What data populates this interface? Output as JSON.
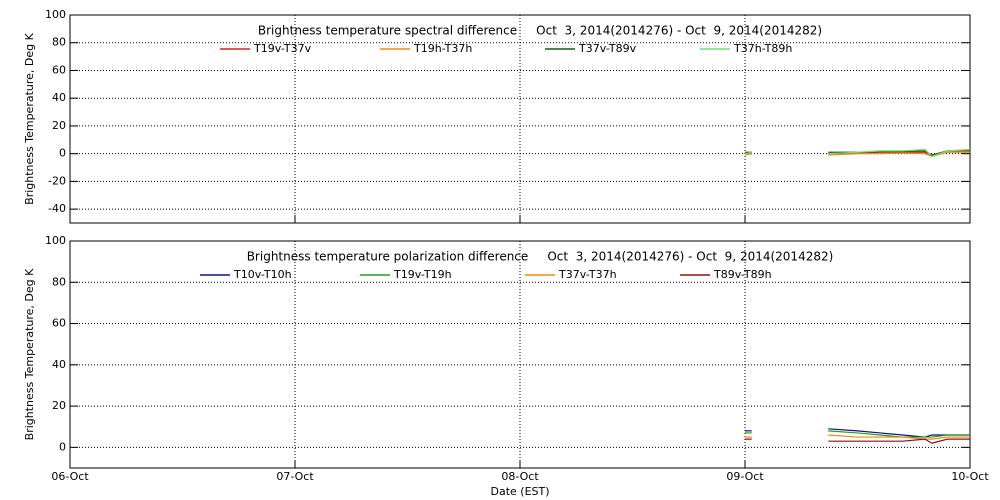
{
  "chart_data": [
    {
      "type": "line",
      "title": "Brightness temperature spectral difference     Oct  3, 2014(2014276) - Oct  9, 2014(2014282)",
      "y_label": "Brightness Temperature, Deg K",
      "x": [
        9.0,
        9.03,
        9.2,
        9.37,
        9.5,
        9.6,
        9.7,
        9.8,
        9.83,
        9.9,
        10.0
      ],
      "series": [
        {
          "name": "T19v-T37v",
          "color": "#d62020",
          "values": [
            0,
            1,
            null,
            0,
            0.5,
            1,
            1,
            1,
            -1,
            2,
            2
          ]
        },
        {
          "name": "T19h-T37h",
          "color": "#f08a10",
          "values": [
            -1,
            0,
            null,
            -1,
            0,
            0,
            0.5,
            0,
            -2,
            1,
            1
          ]
        },
        {
          "name": "T37v-T89v",
          "color": "#106010",
          "values": [
            1,
            1,
            null,
            1,
            1,
            1.5,
            1.5,
            2,
            -1,
            2,
            2.5
          ]
        },
        {
          "name": "T37h-T89h",
          "color": "#70e070",
          "values": [
            0,
            1,
            null,
            0,
            1,
            2,
            2,
            3,
            -2,
            2,
            3
          ]
        }
      ],
      "xlim": [
        6,
        10
      ],
      "xticks": [
        6,
        7,
        8,
        9,
        10
      ],
      "ylim": [
        -50,
        100
      ],
      "yticks": [
        -40,
        -20,
        0,
        20,
        40,
        60,
        80,
        100
      ],
      "grid": true
    },
    {
      "type": "line",
      "title": "Brightness temperature polarization difference     Oct  3, 2014(2014276) - Oct  9, 2014(2014282)",
      "y_label": "Brightness Temperature, Deg K",
      "x_label": "Date (EST)",
      "x": [
        9.0,
        9.03,
        9.2,
        9.37,
        9.5,
        9.6,
        9.7,
        9.8,
        9.83,
        9.9,
        10.0
      ],
      "series": [
        {
          "name": "T10v-T10h",
          "color": "#101080",
          "values": [
            8,
            8,
            null,
            9,
            8,
            7,
            6,
            5,
            6,
            6,
            6
          ]
        },
        {
          "name": "T19v-T19h",
          "color": "#20a020",
          "values": [
            7,
            7,
            null,
            8,
            7,
            6,
            5,
            5,
            5,
            6,
            6
          ]
        },
        {
          "name": "T37v-T37h",
          "color": "#f08a10",
          "values": [
            5,
            5,
            null,
            6,
            5,
            5,
            5,
            4,
            4,
            5,
            5
          ]
        },
        {
          "name": "T89v-T89h",
          "color": "#901010",
          "values": [
            4,
            4,
            null,
            3,
            3,
            3,
            3,
            4,
            2,
            4,
            4
          ]
        }
      ],
      "xlim": [
        6,
        10
      ],
      "xticks": [
        {
          "value": 6,
          "label": "06-Oct"
        },
        {
          "value": 7,
          "label": "07-Oct"
        },
        {
          "value": 8,
          "label": "08-Oct"
        },
        {
          "value": 9,
          "label": "09-Oct"
        },
        {
          "value": 10,
          "label": "10-Oct"
        }
      ],
      "ylim": [
        -10,
        100
      ],
      "yticks": [
        0,
        20,
        40,
        60,
        80,
        100
      ],
      "grid": true
    }
  ]
}
